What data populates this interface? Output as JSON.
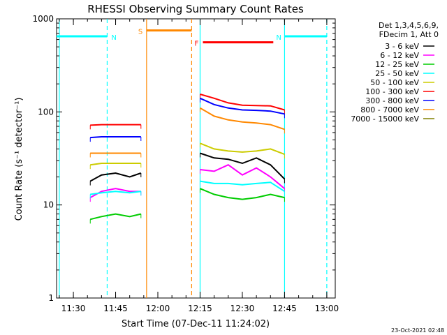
{
  "chart_data": {
    "type": "line",
    "title": "RHESSI Observing Summary Count Rates",
    "xlabel": "Start Time (07-Dec-11 11:24:02)",
    "ylabel": "Count Rate (s⁻¹ detector⁻¹)",
    "yscale": "log",
    "ylim": [
      1,
      1000
    ],
    "xlim": [
      "11:24:02",
      "13:03:00"
    ],
    "x_ticks": [
      "11:30",
      "11:45",
      "12:00",
      "12:15",
      "12:30",
      "12:45",
      "13:00"
    ],
    "y_ticks": [
      "1",
      "10",
      "100",
      "1000"
    ],
    "legend_title": [
      "Det 1,3,4,5,6,9,",
      "FDecim 1, Att 0"
    ],
    "legend_position": "right",
    "series": [
      {
        "name": "3 - 6 keV",
        "color": "#000000",
        "segments": [
          {
            "t": [
              "11:36",
              "11:40",
              "11:45",
              "11:50",
              "11:54"
            ],
            "v": [
              18,
              21,
              22,
              20,
              22
            ]
          },
          {
            "t": [
              "12:15",
              "12:20",
              "12:25",
              "12:30",
              "12:35",
              "12:40",
              "12:45"
            ],
            "v": [
              36,
              32,
              31,
              28,
              32,
              27,
              19
            ]
          }
        ]
      },
      {
        "name": "6 - 12 keV",
        "color": "#ff00ff",
        "segments": [
          {
            "t": [
              "11:36",
              "11:40",
              "11:45",
              "11:50",
              "11:54"
            ],
            "v": [
              12,
              14,
              15,
              14,
              14
            ]
          },
          {
            "t": [
              "12:15",
              "12:20",
              "12:25",
              "12:30",
              "12:35",
              "12:40",
              "12:45"
            ],
            "v": [
              24,
              23,
              27,
              21,
              25,
              20,
              15
            ]
          }
        ]
      },
      {
        "name": "12 - 25 keV",
        "color": "#00cc00",
        "segments": [
          {
            "t": [
              "11:36",
              "11:40",
              "11:45",
              "11:50",
              "11:54"
            ],
            "v": [
              7,
              7.5,
              8,
              7.5,
              8
            ]
          },
          {
            "t": [
              "12:15",
              "12:20",
              "12:25",
              "12:30",
              "12:35",
              "12:40",
              "12:45"
            ],
            "v": [
              15,
              13,
              12,
              11.5,
              12,
              13,
              12
            ]
          }
        ]
      },
      {
        "name": "25 - 50 keV",
        "color": "#00ffff",
        "segments": [
          {
            "t": [
              "11:36",
              "11:40",
              "11:45",
              "11:50",
              "11:54"
            ],
            "v": [
              13,
              13.5,
              14,
              13.5,
              14
            ]
          },
          {
            "t": [
              "12:15",
              "12:20",
              "12:25",
              "12:30",
              "12:35",
              "12:40",
              "12:45"
            ],
            "v": [
              18,
              17,
              17,
              16.5,
              17,
              17.5,
              14
            ]
          }
        ]
      },
      {
        "name": "50 - 100 keV",
        "color": "#cccc00",
        "segments": [
          {
            "t": [
              "11:36",
              "11:40",
              "11:45",
              "11:50",
              "11:54"
            ],
            "v": [
              27,
              28,
              28,
              28,
              28
            ]
          },
          {
            "t": [
              "12:15",
              "12:20",
              "12:25",
              "12:30",
              "12:35",
              "12:40",
              "12:45"
            ],
            "v": [
              46,
              40,
              38,
              37,
              38,
              40,
              35
            ]
          }
        ]
      },
      {
        "name": "100 - 300 keV",
        "color": "#ff0000",
        "segments": [
          {
            "t": [
              "11:36",
              "11:40",
              "11:45",
              "11:50",
              "11:54"
            ],
            "v": [
              72,
              73,
              73,
              73,
              73
            ]
          },
          {
            "t": [
              "12:15",
              "12:20",
              "12:25",
              "12:30",
              "12:35",
              "12:40",
              "12:45"
            ],
            "v": [
              155,
              140,
              125,
              118,
              117,
              116,
              105
            ]
          }
        ]
      },
      {
        "name": "300 - 800 keV",
        "color": "#0000ff",
        "segments": [
          {
            "t": [
              "11:36",
              "11:40",
              "11:45",
              "11:50",
              "11:54"
            ],
            "v": [
              53,
              54,
              54,
              54,
              54
            ]
          },
          {
            "t": [
              "12:15",
              "12:20",
              "12:25",
              "12:30",
              "12:35",
              "12:40",
              "12:45"
            ],
            "v": [
              140,
              120,
              110,
              105,
              104,
              102,
              95
            ]
          }
        ]
      },
      {
        "name": "800 - 7000 keV",
        "color": "#ff8800",
        "segments": [
          {
            "t": [
              "11:36",
              "11:40",
              "11:45",
              "11:50",
              "11:54"
            ],
            "v": [
              36,
              36,
              36,
              36,
              36
            ]
          },
          {
            "t": [
              "12:15",
              "12:20",
              "12:25",
              "12:30",
              "12:35",
              "12:40",
              "12:45"
            ],
            "v": [
              110,
              90,
              82,
              78,
              76,
              73,
              65
            ]
          }
        ]
      },
      {
        "name": "7000 - 15000 keV",
        "color": "#808000",
        "segments": []
      }
    ],
    "annotations": [
      {
        "label": "N",
        "color": "#00ffff",
        "start": "11:24:02",
        "end": "11:42",
        "level": 650
      },
      {
        "label": "N",
        "color": "#00ffff",
        "start": "12:45",
        "end": "13:00",
        "level": 650
      },
      {
        "label": "S",
        "color": "#ff8800",
        "start": "11:56",
        "end": "12:12",
        "level": 750
      },
      {
        "label": "F",
        "color": "#ff0000",
        "start": "12:16",
        "end": "12:41",
        "level": 560
      }
    ],
    "solid_markers": [
      {
        "time": "11:25",
        "color": "#00ffff"
      },
      {
        "time": "11:56",
        "color": "#ff8800"
      },
      {
        "time": "12:15",
        "color": "#00ffff"
      },
      {
        "time": "12:45",
        "color": "#00ffff"
      }
    ],
    "dashed_markers": [
      {
        "time": "11:42",
        "color": "#00ffff"
      },
      {
        "time": "12:12",
        "color": "#ff8800"
      },
      {
        "time": "13:00",
        "color": "#00ffff"
      }
    ]
  },
  "footer_timestamp": "23-Oct-2021 02:48"
}
